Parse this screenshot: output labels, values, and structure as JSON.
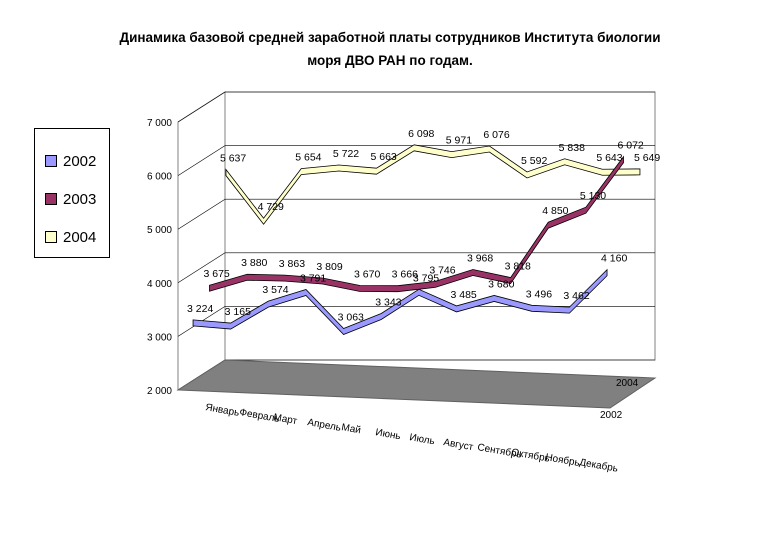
{
  "chart_data": {
    "type": "line",
    "title_line1": "Динамика базовой средней заработной платы сотрудников Института биологии",
    "title_line2": "моря ДВО РАН по годам.",
    "ylim": [
      2000,
      7000
    ],
    "y_ticks": [
      "2 000",
      "3 000",
      "4 000",
      "5 000",
      "6 000",
      "7 000"
    ],
    "depth_labels": [
      "2004",
      "2002"
    ],
    "grid": true,
    "legend_position": "left",
    "categories": [
      "Январь",
      "Февраль",
      "Март",
      "Апрель",
      "Май",
      "Июнь",
      "Июль",
      "Август",
      "Сентябрь",
      "Октябрь",
      "Ноябрь",
      "Декабрь"
    ],
    "series": [
      {
        "name": "2002",
        "color": "#9999ff",
        "values": [
          3224,
          3165,
          3574,
          3791,
          3063,
          3343,
          3795,
          3485,
          3680,
          3496,
          3462,
          4160
        ],
        "labels": [
          "3 224",
          "3 165",
          "3 574",
          "3 791",
          "3 063",
          "3 343",
          "3 795",
          "3 485",
          "3 680",
          "3 496",
          "3 462",
          "4 160"
        ]
      },
      {
        "name": "2003",
        "color": "#993366",
        "values": [
          3675,
          3880,
          3863,
          3809,
          3670,
          3666,
          3746,
          3968,
          3818,
          4850,
          5130,
          6072
        ],
        "labels": [
          "3 675",
          "3 880",
          "3 863",
          "3 809",
          "3 670",
          "3 666",
          "3 746",
          "3 968",
          "3 818",
          "4 850",
          "5 130",
          "6 072"
        ]
      },
      {
        "name": "2004",
        "color": "#ffffcc",
        "values": [
          5637,
          4729,
          5654,
          5722,
          5663,
          6098,
          5971,
          6076,
          5592,
          5838,
          5643,
          5649
        ],
        "labels": [
          "5 637",
          "4 729",
          "5 654",
          "5 722",
          "5 663",
          "6 098",
          "5 971",
          "6 076",
          "5 592",
          "5 838",
          "5 643",
          "5 649"
        ]
      }
    ]
  }
}
